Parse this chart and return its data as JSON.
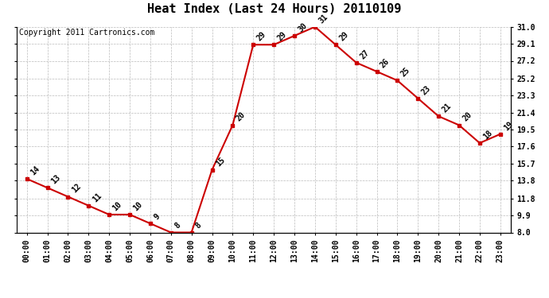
{
  "title": "Heat Index (Last 24 Hours) 20110109",
  "copyright": "Copyright 2011 Cartronics.com",
  "hours": [
    "00:00",
    "01:00",
    "02:00",
    "03:00",
    "04:00",
    "05:00",
    "06:00",
    "07:00",
    "08:00",
    "09:00",
    "10:00",
    "11:00",
    "12:00",
    "13:00",
    "14:00",
    "15:00",
    "16:00",
    "17:00",
    "18:00",
    "19:00",
    "20:00",
    "21:00",
    "22:00",
    "23:00"
  ],
  "values": [
    14,
    13,
    12,
    11,
    10,
    10,
    9,
    8,
    8,
    15,
    20,
    29,
    29,
    30,
    31,
    29,
    27,
    26,
    25,
    23,
    21,
    20,
    18,
    19
  ],
  "ylim": [
    8.0,
    31.0
  ],
  "yticks": [
    8.0,
    9.9,
    11.8,
    13.8,
    15.7,
    17.6,
    19.5,
    21.4,
    23.3,
    25.2,
    27.2,
    29.1,
    31.0
  ],
  "line_color": "#cc0000",
  "marker_color": "#cc0000",
  "bg_color": "#ffffff",
  "grid_color": "#bbbbbb",
  "title_fontsize": 11,
  "label_fontsize": 7,
  "tick_fontsize": 7,
  "copyright_fontsize": 7
}
